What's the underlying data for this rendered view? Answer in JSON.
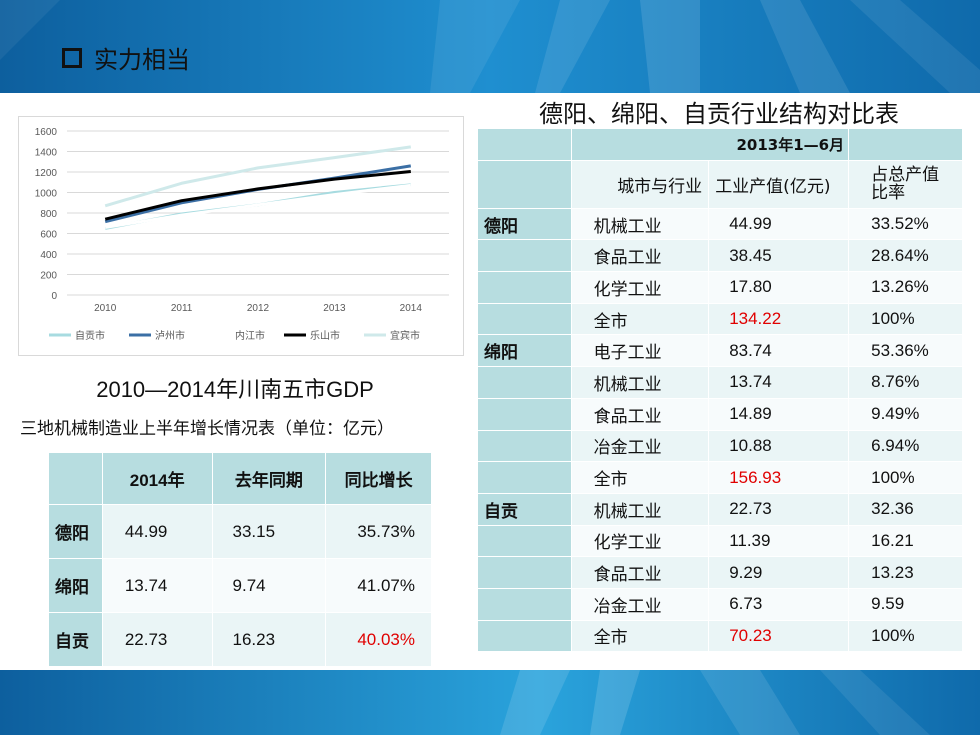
{
  "slide": {
    "title": "实力相当"
  },
  "chart_caption": "2010—2014年川南五市GDP",
  "colors": {
    "banner": "#1a86c7",
    "table_header": "#b7dde0",
    "highlight": "#e00000"
  },
  "chart_data": {
    "type": "line",
    "title": "",
    "xlabel": "",
    "ylabel": "",
    "categories": [
      "2010",
      "2011",
      "2012",
      "2013",
      "2014"
    ],
    "ylim": [
      0,
      1600
    ],
    "yticks": [
      "0",
      "200",
      "400",
      "600",
      "800",
      "1000",
      "1200",
      "1400",
      "1600"
    ],
    "grid": true,
    "legend": "bottom",
    "series": [
      {
        "name": "自贡市",
        "color": "#a7dbe0",
        "values": [
          650,
          790,
          880,
          1000,
          1075
        ]
      },
      {
        "name": "泸州市",
        "color": "#3b6fa5",
        "values": [
          715,
          900,
          1030,
          1140,
          1260
        ]
      },
      {
        "name": "内江市",
        "color": "#ffffff",
        "values": [
          660,
          780,
          880,
          980,
          1070
        ]
      },
      {
        "name": "乐山市",
        "color": "#000000",
        "values": [
          740,
          920,
          1035,
          1130,
          1205
        ]
      },
      {
        "name": "宜宾市",
        "color": "#cfe9ea",
        "values": [
          870,
          1090,
          1240,
          1340,
          1445
        ]
      }
    ]
  },
  "left_table": {
    "caption": "三地机械制造业上半年增长情况表（单位：亿元）",
    "headers": [
      "",
      "2014年",
      "去年同期",
      "同比增长"
    ],
    "rows": [
      {
        "city": "德阳",
        "v2014": "44.99",
        "last": "33.15",
        "growth": "35.73%"
      },
      {
        "city": "绵阳",
        "v2014": "13.74",
        "last": "9.74",
        "growth": "41.07%"
      },
      {
        "city": "自贡",
        "v2014": "22.73",
        "last": "16.23",
        "growth": "40.03%"
      }
    ]
  },
  "right_table": {
    "caption": "德阳、绵阳、自贡行业结构对比表",
    "period": "2013年1—6月",
    "headers": [
      "城市与行业",
      "工业产值(亿元)",
      "占总产值比率"
    ],
    "rows": [
      {
        "city": "德阳",
        "industry": "机械工业",
        "value": "44.99",
        "ratio": "33.52%"
      },
      {
        "city": "",
        "industry": "食品工业",
        "value": "38.45",
        "ratio": "28.64%"
      },
      {
        "city": "",
        "industry": "化学工业",
        "value": "17.80",
        "ratio": "13.26%"
      },
      {
        "city": "",
        "industry": "全市",
        "value": "134.22",
        "ratio": "100%"
      },
      {
        "city": "绵阳",
        "industry": "电子工业",
        "value": "83.74",
        "ratio": "53.36%"
      },
      {
        "city": "",
        "industry": "机械工业",
        "value": "13.74",
        "ratio": "8.76%"
      },
      {
        "city": "",
        "industry": "食品工业",
        "value": "14.89",
        "ratio": "9.49%"
      },
      {
        "city": "",
        "industry": "冶金工业",
        "value": "10.88",
        "ratio": "6.94%"
      },
      {
        "city": "",
        "industry": "全市",
        "value": "156.93",
        "ratio": "100%"
      },
      {
        "city": "自贡",
        "industry": "机械工业",
        "value": "22.73",
        "ratio": "32.36"
      },
      {
        "city": "",
        "industry": "化学工业",
        "value": "11.39",
        "ratio": "16.21"
      },
      {
        "city": "",
        "industry": "食品工业",
        "value": "9.29",
        "ratio": "13.23"
      },
      {
        "city": "",
        "industry": "冶金工业",
        "value": "6.73",
        "ratio": "9.59"
      },
      {
        "city": "",
        "industry": "全市",
        "value": "70.23",
        "ratio": "100%"
      }
    ]
  }
}
